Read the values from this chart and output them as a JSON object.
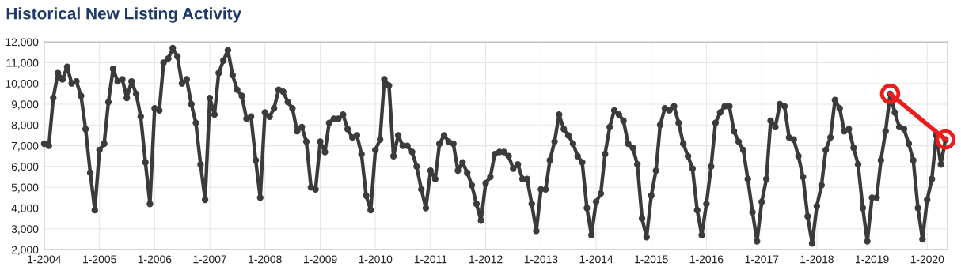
{
  "chart_data": {
    "type": "line",
    "title": "Historical New Listing Activity",
    "x": [
      "2004-01",
      "2004-02",
      "2004-03",
      "2004-04",
      "2004-05",
      "2004-06",
      "2004-07",
      "2004-08",
      "2004-09",
      "2004-10",
      "2004-11",
      "2004-12",
      "2005-01",
      "2005-02",
      "2005-03",
      "2005-04",
      "2005-05",
      "2005-06",
      "2005-07",
      "2005-08",
      "2005-09",
      "2005-10",
      "2005-11",
      "2005-12",
      "2006-01",
      "2006-02",
      "2006-03",
      "2006-04",
      "2006-05",
      "2006-06",
      "2006-07",
      "2006-08",
      "2006-09",
      "2006-10",
      "2006-11",
      "2006-12",
      "2007-01",
      "2007-02",
      "2007-03",
      "2007-04",
      "2007-05",
      "2007-06",
      "2007-07",
      "2007-08",
      "2007-09",
      "2007-10",
      "2007-11",
      "2007-12",
      "2008-01",
      "2008-02",
      "2008-03",
      "2008-04",
      "2008-05",
      "2008-06",
      "2008-07",
      "2008-08",
      "2008-09",
      "2008-10",
      "2008-11",
      "2008-12",
      "2009-01",
      "2009-02",
      "2009-03",
      "2009-04",
      "2009-05",
      "2009-06",
      "2009-07",
      "2009-08",
      "2009-09",
      "2009-10",
      "2009-11",
      "2009-12",
      "2010-01",
      "2010-02",
      "2010-03",
      "2010-04",
      "2010-05",
      "2010-06",
      "2010-07",
      "2010-08",
      "2010-09",
      "2010-10",
      "2010-11",
      "2010-12",
      "2011-01",
      "2011-02",
      "2011-03",
      "2011-04",
      "2011-05",
      "2011-06",
      "2011-07",
      "2011-08",
      "2011-09",
      "2011-10",
      "2011-11",
      "2011-12",
      "2012-01",
      "2012-02",
      "2012-03",
      "2012-04",
      "2012-05",
      "2012-06",
      "2012-07",
      "2012-08",
      "2012-09",
      "2012-10",
      "2012-11",
      "2012-12",
      "2013-01",
      "2013-02",
      "2013-03",
      "2013-04",
      "2013-05",
      "2013-06",
      "2013-07",
      "2013-08",
      "2013-09",
      "2013-10",
      "2013-11",
      "2013-12",
      "2014-01",
      "2014-02",
      "2014-03",
      "2014-04",
      "2014-05",
      "2014-06",
      "2014-07",
      "2014-08",
      "2014-09",
      "2014-10",
      "2014-11",
      "2014-12",
      "2015-01",
      "2015-02",
      "2015-03",
      "2015-04",
      "2015-05",
      "2015-06",
      "2015-07",
      "2015-08",
      "2015-09",
      "2015-10",
      "2015-11",
      "2015-12",
      "2016-01",
      "2016-02",
      "2016-03",
      "2016-04",
      "2016-05",
      "2016-06",
      "2016-07",
      "2016-08",
      "2016-09",
      "2016-10",
      "2016-11",
      "2016-12",
      "2017-01",
      "2017-02",
      "2017-03",
      "2017-04",
      "2017-05",
      "2017-06",
      "2017-07",
      "2017-08",
      "2017-09",
      "2017-10",
      "2017-11",
      "2017-12",
      "2018-01",
      "2018-02",
      "2018-03",
      "2018-04",
      "2018-05",
      "2018-06",
      "2018-07",
      "2018-08",
      "2018-09",
      "2018-10",
      "2018-11",
      "2018-12",
      "2019-01",
      "2019-02",
      "2019-03",
      "2019-04",
      "2019-05",
      "2019-06",
      "2019-07",
      "2019-08",
      "2019-09",
      "2019-10",
      "2019-11",
      "2019-12",
      "2020-01",
      "2020-02",
      "2020-03",
      "2020-04",
      "2020-05"
    ],
    "series": [
      {
        "color": "#3b3b3d",
        "marker": "circle",
        "values": [
          7100,
          7000,
          9300,
          10500,
          10200,
          10800,
          10000,
          10100,
          9400,
          7800,
          5700,
          3900,
          6800,
          7100,
          9100,
          10700,
          10100,
          10200,
          9300,
          10100,
          9500,
          8400,
          6200,
          4200,
          8800,
          8700,
          11000,
          11200,
          11700,
          11300,
          10000,
          10200,
          9000,
          8100,
          6100,
          4400,
          9300,
          8500,
          10500,
          11100,
          11600,
          10400,
          9700,
          9400,
          8300,
          8400,
          6300,
          4500,
          8600,
          8400,
          8800,
          9700,
          9600,
          9100,
          8800,
          7700,
          7900,
          7200,
          5000,
          4900,
          7200,
          6700,
          8100,
          8300,
          8300,
          8500,
          7800,
          7400,
          7500,
          6600,
          4600,
          3900,
          6800,
          7300,
          10200,
          9900,
          6500,
          7500,
          7000,
          7000,
          6700,
          6000,
          4900,
          4000,
          5800,
          5400,
          7100,
          7500,
          7200,
          7100,
          5800,
          6200,
          5700,
          5100,
          4200,
          3400,
          5200,
          5500,
          6600,
          6700,
          6700,
          6500,
          5900,
          6100,
          5400,
          5400,
          4200,
          2900,
          4900,
          4900,
          6300,
          7200,
          8500,
          7800,
          7500,
          7100,
          6500,
          6200,
          4000,
          2700,
          4300,
          4700,
          6600,
          7900,
          8700,
          8500,
          8200,
          7100,
          6900,
          6100,
          3500,
          2600,
          4600,
          5800,
          8000,
          8800,
          8700,
          8900,
          8100,
          7100,
          6500,
          5900,
          3900,
          2700,
          4200,
          6000,
          8100,
          8600,
          8900,
          8900,
          7700,
          7200,
          6800,
          5400,
          3800,
          2400,
          4300,
          5400,
          8200,
          7900,
          9000,
          8900,
          7400,
          7300,
          6500,
          5500,
          3600,
          2300,
          4100,
          5100,
          6800,
          7400,
          9200,
          8800,
          7700,
          7800,
          6900,
          6100,
          4000,
          2400,
          4500,
          4500,
          6300,
          7700,
          9500,
          8600,
          7900,
          7800,
          7100,
          6300,
          4000,
          2500,
          4400,
          5400,
          7500,
          6100,
          7300
        ]
      },
      {
        "color": "#ee1c1c",
        "marker": "circle",
        "x": [
          "2019-05",
          "2020-05"
        ],
        "values": [
          9500,
          7300
        ]
      }
    ],
    "xlim": [
      "2004-01",
      "2020-05-15"
    ],
    "xticks": [
      {
        "value": "2004-01",
        "label": "1-2004"
      },
      {
        "value": "2005-01",
        "label": "1-2005"
      },
      {
        "value": "2006-01",
        "label": "1-2006"
      },
      {
        "value": "2007-01",
        "label": "1-2007"
      },
      {
        "value": "2008-01",
        "label": "1-2008"
      },
      {
        "value": "2009-01",
        "label": "1-2009"
      },
      {
        "value": "2010-01",
        "label": "1-2010"
      },
      {
        "value": "2011-01",
        "label": "1-2011"
      },
      {
        "value": "2012-01",
        "label": "1-2012"
      },
      {
        "value": "2013-01",
        "label": "1-2013"
      },
      {
        "value": "2014-01",
        "label": "1-2014"
      },
      {
        "value": "2015-01",
        "label": "1-2015"
      },
      {
        "value": "2016-01",
        "label": "1-2016"
      },
      {
        "value": "2017-01",
        "label": "1-2017"
      },
      {
        "value": "2018-01",
        "label": "1-2018"
      },
      {
        "value": "2019-01",
        "label": "1-2019"
      },
      {
        "value": "2020-01",
        "label": "1-2020"
      }
    ],
    "ylim": [
      2000,
      12000
    ],
    "yticks": [
      {
        "value": 2000,
        "label": "2,000"
      },
      {
        "value": 3000,
        "label": "3,000"
      },
      {
        "value": 4000,
        "label": "4,000"
      },
      {
        "value": 5000,
        "label": "5,000"
      },
      {
        "value": 6000,
        "label": "6,000"
      },
      {
        "value": 7000,
        "label": "7,000"
      },
      {
        "value": 8000,
        "label": "8,000"
      },
      {
        "value": 9000,
        "label": "9,000"
      },
      {
        "value": 10000,
        "label": "10,000"
      },
      {
        "value": 11000,
        "label": "11,000"
      },
      {
        "value": 12000,
        "label": "12,000"
      }
    ],
    "grid": true
  }
}
